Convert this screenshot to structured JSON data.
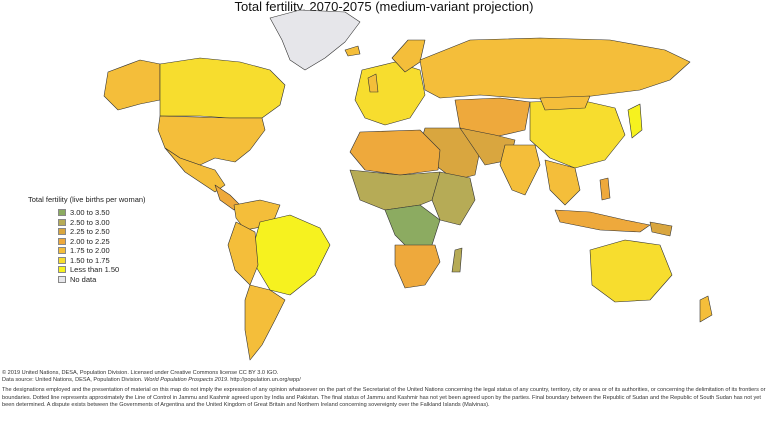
{
  "title": "Total fertility, 2070-2075 (medium-variant projection)",
  "legend": {
    "title": "Total fertility (live births per woman)",
    "items": [
      {
        "label": "3.00 to 3.50",
        "color": "#8cab61"
      },
      {
        "label": "2.50 to 3.00",
        "color": "#b6ab56"
      },
      {
        "label": "2.25 to 2.50",
        "color": "#d9a63f"
      },
      {
        "label": "2.00 to 2.25",
        "color": "#eea93c"
      },
      {
        "label": "1.75 to 2.00",
        "color": "#f4be3a"
      },
      {
        "label": "1.50 to 1.75",
        "color": "#f7dd2e"
      },
      {
        "label": "Less than 1.50",
        "color": "#f6f21f"
      },
      {
        "label": "No data",
        "color": "#e6e6ea"
      }
    ]
  },
  "footer": {
    "license": "© 2019 United Nations, DESA, Population Division. Licensed under Creative Commons license CC BY 3.0 IGO.",
    "source_prefix": "Data source: United Nations, DESA, Population Division. ",
    "source_title": "World Population Prospects 2019",
    "source_suffix": ". http://population.un.org/wpp/",
    "disclaimer": "The designations employed and the presentation of material on this map do not imply the expression of any opinion whatsoever on the part of the Secretariat of the United Nations concerning the legal status of any country, territory, city or area or of its authorities, or concerning the delimitation of its frontiers or boundaries. Dotted line represents approximately the Line of Control in Jammu and Kashmir agreed upon by India and Pakistan. The final status of Jammu and Kashmir has not yet been agreed upon by the parties. Final boundary between the Republic of Sudan and the Republic of South Sudan has not yet been determined. A dispute exists between the Governments of Argentina and the United Kingdom of Great Britain and Northern Ireland concerning sovereignty over the Falkland Islands (Malvinas)."
  }
}
